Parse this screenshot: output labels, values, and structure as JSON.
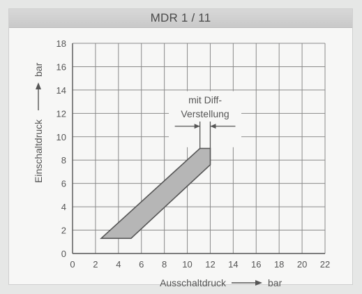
{
  "header": {
    "title": "MDR 1 / 11"
  },
  "chart_data": {
    "type": "area",
    "xlabel": "Ausschaltdruck",
    "xunit": "bar",
    "ylabel": "Einschaltdruck",
    "yunit": "bar",
    "xlim": [
      0,
      22
    ],
    "ylim": [
      0,
      18
    ],
    "xticks": [
      0,
      2,
      4,
      6,
      8,
      10,
      12,
      14,
      16,
      18,
      20,
      22
    ],
    "yticks": [
      0,
      2,
      4,
      6,
      8,
      10,
      12,
      14,
      16,
      18
    ],
    "grid": true,
    "band": [
      [
        2.5,
        1.3
      ],
      [
        5.1,
        1.3
      ],
      [
        12,
        7.6
      ],
      [
        12,
        9
      ],
      [
        11.1,
        9
      ],
      [
        2.5,
        1.3
      ]
    ],
    "annotation": {
      "lines": [
        "mit Diff-",
        "Verstellung"
      ],
      "x_from": 11.1,
      "x_to": 12
    },
    "colors": {
      "band_fill": "#b6b6b6",
      "line": "#555555",
      "grid": "#8a8a8a",
      "text": "#555555"
    }
  }
}
